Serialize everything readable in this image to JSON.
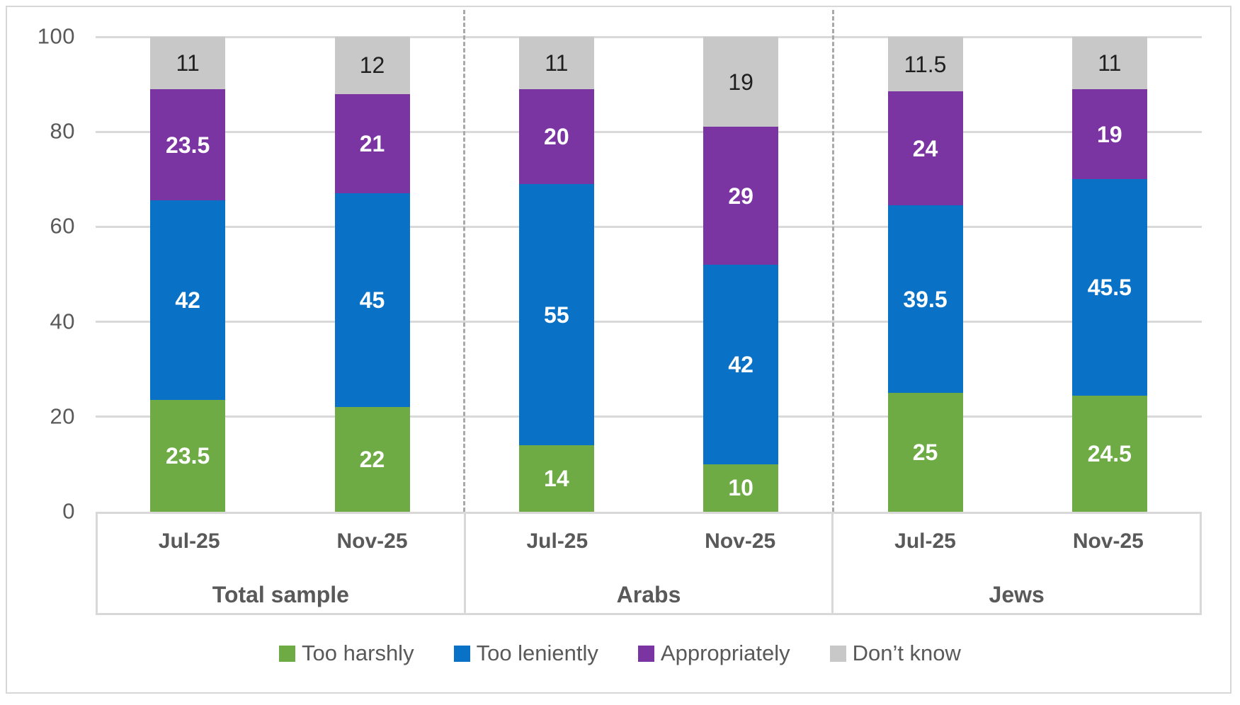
{
  "chart_data": {
    "type": "bar",
    "stacked": true,
    "title": "",
    "xlabel": "",
    "ylabel": "",
    "ylim": [
      0,
      100
    ],
    "y_ticks": [
      0,
      20,
      40,
      60,
      80,
      100
    ],
    "grid": true,
    "legend_position": "bottom",
    "group_labels": [
      "Total sample",
      "Arabs",
      "Jews"
    ],
    "x_labels": [
      "Jul-25",
      "Nov-25",
      "Jul-25",
      "Nov-25",
      "Jul-25",
      "Nov-25"
    ],
    "series": [
      {
        "name": "Too harshly",
        "color": "#6EAB45",
        "label_color": "#FFFFFF",
        "label_bold": true,
        "values": [
          23.5,
          22,
          14,
          10,
          25,
          24.5
        ]
      },
      {
        "name": "Too leniently",
        "color": "#0A72C6",
        "label_color": "#FFFFFF",
        "label_bold": true,
        "values": [
          42,
          45,
          55,
          42,
          39.5,
          45.5
        ]
      },
      {
        "name": "Appropriately",
        "color": "#7A35A3",
        "label_color": "#FFFFFF",
        "label_bold": true,
        "values": [
          23.5,
          21,
          20,
          29,
          24,
          19
        ]
      },
      {
        "name": "Don’t know",
        "color": "#C8C8C8",
        "label_color": "#1F1F1F",
        "label_bold": false,
        "values": [
          11,
          12,
          11,
          19,
          11.5,
          11
        ]
      }
    ]
  },
  "colors": {
    "axis_text": "#595959",
    "gridline": "#D9D9D9",
    "group_separator": "#A9A9A9",
    "axis_box_border": "#D8D8D8",
    "frame_border": "#D7D7D7"
  }
}
